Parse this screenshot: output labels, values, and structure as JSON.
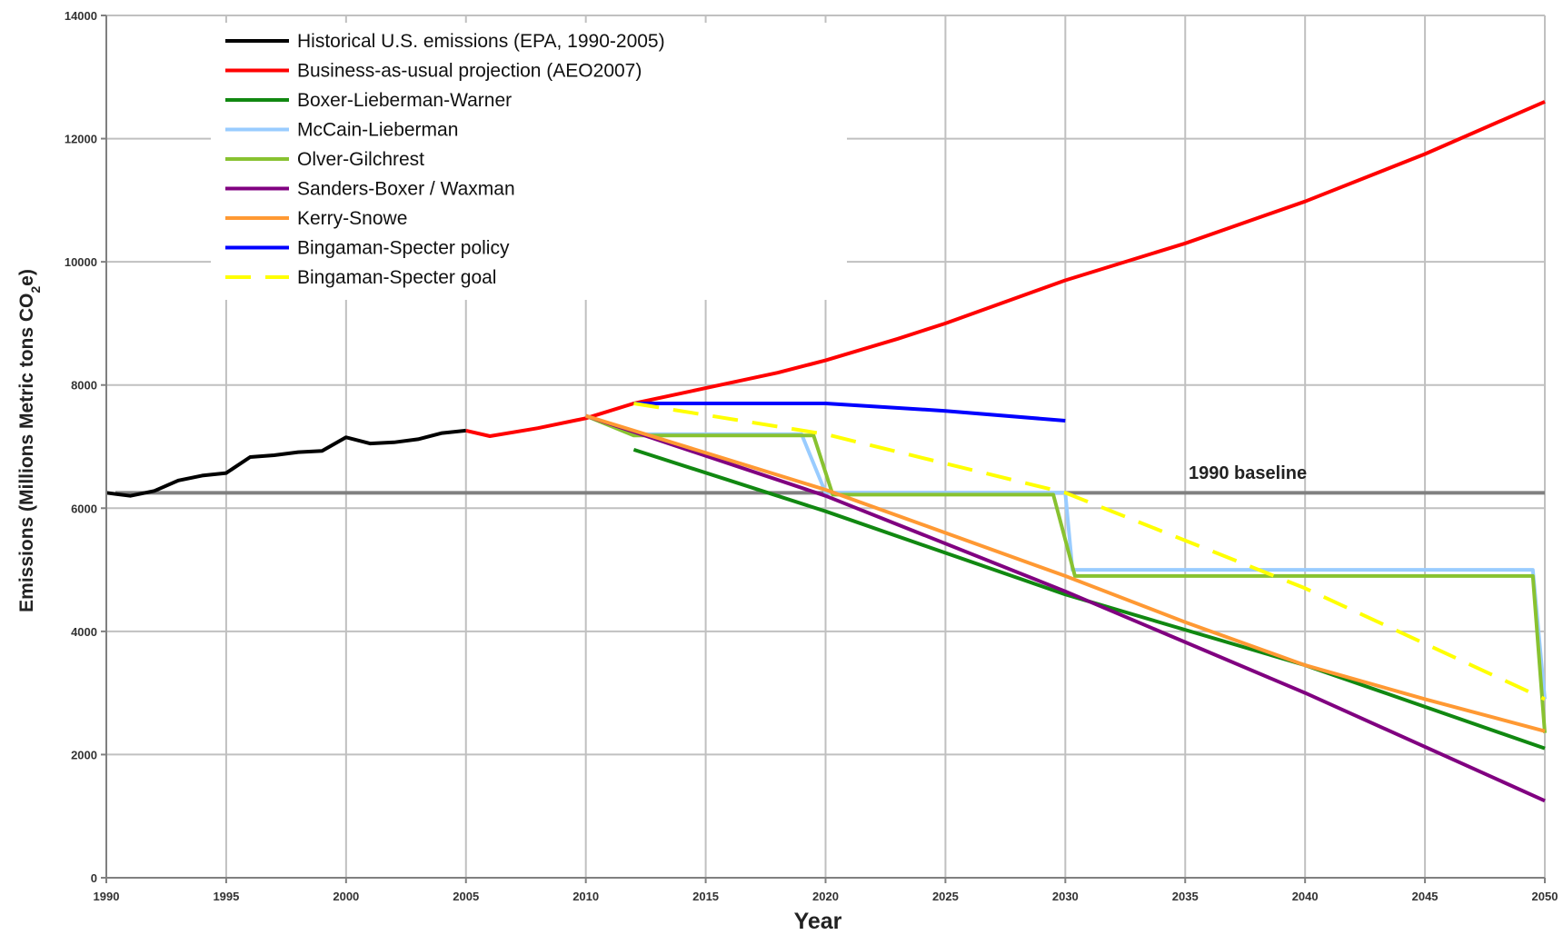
{
  "chart_data": {
    "type": "line",
    "title": "",
    "xlabel": "Year",
    "ylabel": "Emissions (Millions Metric tons CO2e)",
    "ylabel_parts": {
      "main": "Emissions (Millions Metric tons CO",
      "sub": "2",
      "end": "e)"
    },
    "xlim": [
      1990,
      2050
    ],
    "ylim": [
      0,
      14000
    ],
    "x_ticks": [
      1990,
      1995,
      2000,
      2005,
      2010,
      2015,
      2020,
      2025,
      2030,
      2035,
      2040,
      2045,
      2050
    ],
    "x_tick_labels": [
      "1990",
      "1995",
      "2000",
      "2005",
      "2010",
      "2015",
      "2020",
      "2025",
      "2030",
      "2035",
      "2040",
      "2045",
      "2050"
    ],
    "y_ticks": [
      0,
      2000,
      4000,
      6000,
      8000,
      10000,
      12000,
      14000
    ],
    "y_tick_labels": [
      "0",
      "2000",
      "4000",
      "6000",
      "8000",
      "10000",
      "12000",
      "14000"
    ],
    "grid": true,
    "legend_position": "top-left",
    "baseline": {
      "label": "1990 baseline",
      "value": 6250,
      "color": "#808080"
    },
    "series": [
      {
        "name": "Historical U.S. emissions (EPA, 1990-2005)",
        "color": "#000000",
        "dash": "solid",
        "points": [
          [
            1990,
            6250
          ],
          [
            1991,
            6200
          ],
          [
            1992,
            6280
          ],
          [
            1993,
            6450
          ],
          [
            1994,
            6530
          ],
          [
            1995,
            6570
          ],
          [
            1996,
            6830
          ],
          [
            1997,
            6860
          ],
          [
            1998,
            6910
          ],
          [
            1999,
            6930
          ],
          [
            2000,
            7150
          ],
          [
            2001,
            7050
          ],
          [
            2002,
            7070
          ],
          [
            2003,
            7120
          ],
          [
            2004,
            7220
          ],
          [
            2005,
            7260
          ]
        ]
      },
      {
        "name": "Business-as-usual projection (AEO2007)",
        "color": "#ff0000",
        "dash": "solid",
        "points": [
          [
            2005,
            7260
          ],
          [
            2006,
            7170
          ],
          [
            2008,
            7300
          ],
          [
            2010,
            7460
          ],
          [
            2012,
            7700
          ],
          [
            2015,
            7950
          ],
          [
            2018,
            8200
          ],
          [
            2020,
            8400
          ],
          [
            2023,
            8750
          ],
          [
            2025,
            9000
          ],
          [
            2030,
            9700
          ],
          [
            2035,
            10300
          ],
          [
            2040,
            10980
          ],
          [
            2045,
            11750
          ],
          [
            2050,
            12600
          ]
        ]
      },
      {
        "name": "Boxer-Lieberman-Warner",
        "color": "#118811",
        "dash": "solid",
        "points": [
          [
            2012,
            6950
          ],
          [
            2020,
            5950
          ],
          [
            2030,
            4600
          ],
          [
            2040,
            3450
          ],
          [
            2050,
            2100
          ]
        ]
      },
      {
        "name": "McCain-Lieberman",
        "color": "#99ccff",
        "dash": "solid",
        "points": [
          [
            2010,
            7500
          ],
          [
            2012,
            7200
          ],
          [
            2019,
            7200
          ],
          [
            2020,
            6250
          ],
          [
            2030,
            6250
          ],
          [
            2030.3,
            5000
          ],
          [
            2049.5,
            5000
          ],
          [
            2050,
            2900
          ]
        ]
      },
      {
        "name": "Olver-Gilchrest",
        "color": "#88c230",
        "dash": "solid",
        "points": [
          [
            2010,
            7500
          ],
          [
            2012,
            7180
          ],
          [
            2019.5,
            7180
          ],
          [
            2020.3,
            6220
          ],
          [
            2029.5,
            6220
          ],
          [
            2030.4,
            4900
          ],
          [
            2049.5,
            4900
          ],
          [
            2050,
            2350
          ]
        ]
      },
      {
        "name": "Sanders-Boxer / Waxman",
        "color": "#800080",
        "dash": "solid",
        "points": [
          [
            2010,
            7500
          ],
          [
            2020,
            6200
          ],
          [
            2030,
            4650
          ],
          [
            2040,
            3000
          ],
          [
            2050,
            1250
          ]
        ]
      },
      {
        "name": "Kerry-Snowe",
        "color": "#ff9933",
        "dash": "solid",
        "points": [
          [
            2010,
            7500
          ],
          [
            2020,
            6300
          ],
          [
            2030,
            4900
          ],
          [
            2035,
            4150
          ],
          [
            2040,
            3450
          ],
          [
            2045,
            2900
          ],
          [
            2050,
            2380
          ]
        ]
      },
      {
        "name": "Bingaman-Specter policy",
        "color": "#0000ff",
        "dash": "solid",
        "points": [
          [
            2012,
            7700
          ],
          [
            2015,
            7700
          ],
          [
            2020,
            7700
          ],
          [
            2025,
            7580
          ],
          [
            2030,
            7420
          ]
        ]
      },
      {
        "name": "Bingaman-Specter goal",
        "color": "#ffff00",
        "dash": "dashed",
        "points": [
          [
            2012,
            7700
          ],
          [
            2020,
            7200
          ],
          [
            2030,
            6250
          ],
          [
            2040,
            4700
          ],
          [
            2050,
            2900
          ]
        ]
      }
    ]
  }
}
